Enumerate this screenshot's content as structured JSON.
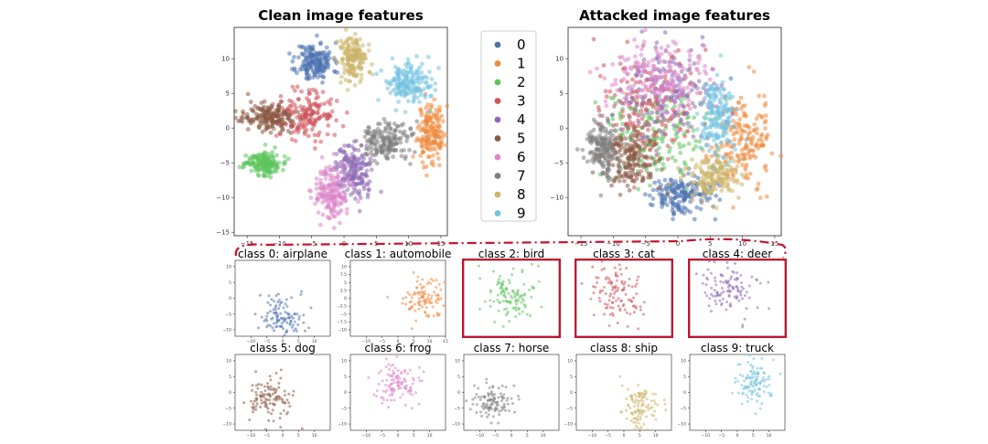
{
  "palette": [
    "#4c72b0",
    "#ee8a3e",
    "#5cc45c",
    "#d0525a",
    "#8e6ab5",
    "#8a5a44",
    "#dd85c8",
    "#7f7f7f",
    "#ccb46a",
    "#73c2e0"
  ],
  "highlight_color": "#c8102e",
  "legend": {
    "entries": [
      "0",
      "1",
      "2",
      "3",
      "4",
      "5",
      "6",
      "7",
      "8",
      "9"
    ]
  },
  "chart_data": [
    {
      "type": "scatter",
      "title": "Clean image features",
      "xlim": [
        -17,
        16
      ],
      "ylim": [
        -15.5,
        14.5
      ],
      "xticks": [
        -15,
        -10,
        -5,
        0,
        5,
        10,
        15
      ],
      "yticks": [
        -15,
        -10,
        -5,
        0,
        5,
        10
      ],
      "ytick_labels": [
        "−15",
        "−10",
        "−5",
        "0",
        "5",
        "10"
      ],
      "clusters": [
        {
          "class": "0",
          "center": [
            -4.5,
            9.5
          ],
          "spread": [
            2.0,
            2.0
          ]
        },
        {
          "class": "1",
          "center": [
            13.5,
            -0.5
          ],
          "spread": [
            1.5,
            3.0
          ]
        },
        {
          "class": "2",
          "center": [
            -12.5,
            -5.0
          ],
          "spread": [
            2.0,
            1.2
          ]
        },
        {
          "class": "3",
          "center": [
            -6.0,
            2.0
          ],
          "spread": [
            3.0,
            2.5
          ]
        },
        {
          "class": "4",
          "center": [
            1.5,
            -6.0
          ],
          "spread": [
            2.0,
            2.8
          ]
        },
        {
          "class": "5",
          "center": [
            -11.5,
            1.5
          ],
          "spread": [
            3.0,
            1.3
          ]
        },
        {
          "class": "6",
          "center": [
            -2.0,
            -9.5
          ],
          "spread": [
            2.0,
            3.0
          ]
        },
        {
          "class": "7",
          "center": [
            6.5,
            -2.0
          ],
          "spread": [
            2.5,
            2.0
          ]
        },
        {
          "class": "8",
          "center": [
            1.5,
            10.0
          ],
          "spread": [
            1.5,
            2.5
          ]
        },
        {
          "class": "9",
          "center": [
            10.0,
            6.5
          ],
          "spread": [
            2.5,
            2.0
          ]
        }
      ]
    },
    {
      "type": "scatter",
      "title": "Attacked image features",
      "xlim": [
        -17,
        16
      ],
      "ylim": [
        -15.5,
        14.5
      ],
      "xticks": [
        -15,
        -10,
        -5,
        0,
        5,
        10,
        15
      ],
      "yticks": [
        -10,
        -5,
        0,
        5,
        10
      ],
      "ytick_labels": [
        "−10",
        "−5",
        "0",
        "5",
        "10"
      ],
      "clusters": [
        {
          "class": "0",
          "center": [
            0.0,
            -9.5
          ],
          "spread": [
            3.5,
            2.0
          ]
        },
        {
          "class": "1",
          "center": [
            10.0,
            -2.0
          ],
          "spread": [
            3.0,
            4.5
          ]
        },
        {
          "class": "2",
          "center": [
            -3.0,
            -1.0
          ],
          "spread": [
            6.0,
            5.0
          ]
        },
        {
          "class": "3",
          "center": [
            -5.0,
            3.0
          ],
          "spread": [
            5.5,
            5.5
          ]
        },
        {
          "class": "4",
          "center": [
            -1.0,
            5.0
          ],
          "spread": [
            5.0,
            4.5
          ]
        },
        {
          "class": "5",
          "center": [
            -7.5,
            -4.5
          ],
          "spread": [
            3.0,
            3.0
          ]
        },
        {
          "class": "6",
          "center": [
            -3.0,
            7.0
          ],
          "spread": [
            5.5,
            3.5
          ]
        },
        {
          "class": "7",
          "center": [
            -11.5,
            -3.0
          ],
          "spread": [
            2.0,
            3.0
          ]
        },
        {
          "class": "8",
          "center": [
            5.5,
            -7.0
          ],
          "spread": [
            3.0,
            2.5
          ]
        },
        {
          "class": "9",
          "center": [
            6.0,
            2.0
          ],
          "spread": [
            2.0,
            4.5
          ]
        }
      ]
    },
    {
      "type": "scatter",
      "title": "class 0: airplane",
      "class": "0",
      "highlighted": false,
      "xlim": [
        -15,
        15
      ],
      "ylim": [
        -12,
        12
      ],
      "xticks": [
        -10,
        -5,
        0,
        5,
        10
      ],
      "yticks": [
        -10,
        -5,
        0,
        5,
        10
      ],
      "center": [
        0,
        -6
      ],
      "spread": [
        5,
        5
      ]
    },
    {
      "type": "scatter",
      "title": "class 1: automobile",
      "class": "1",
      "highlighted": false,
      "xlim": [
        -15,
        15
      ],
      "ylim": [
        -12,
        12
      ],
      "xticks": [
        -10,
        -5,
        0,
        5,
        10,
        15
      ],
      "yticks": [
        -10.0,
        -7.5,
        -5.0,
        -2.5,
        0.0,
        2.5,
        5.0,
        7.5,
        10.0
      ],
      "center": [
        8,
        0
      ],
      "spread": [
        5,
        4
      ]
    },
    {
      "type": "scatter",
      "title": "class 2: bird",
      "class": "2",
      "highlighted": true,
      "xlim": [
        -15,
        15
      ],
      "ylim": [
        -12,
        12
      ],
      "xticks": [],
      "yticks": [],
      "center": [
        0,
        1
      ],
      "spread": [
        6,
        6
      ]
    },
    {
      "type": "scatter",
      "title": "class 3: cat",
      "class": "3",
      "highlighted": true,
      "xlim": [
        -15,
        15
      ],
      "ylim": [
        -12,
        12
      ],
      "xticks": [],
      "yticks": [],
      "center": [
        -2,
        2
      ],
      "spread": [
        6,
        6
      ]
    },
    {
      "type": "scatter",
      "title": "class 4: deer",
      "class": "4",
      "highlighted": true,
      "xlim": [
        -15,
        15
      ],
      "ylim": [
        -12,
        12
      ],
      "xticks": [],
      "yticks": [],
      "center": [
        -2,
        3
      ],
      "spread": [
        6,
        5
      ]
    },
    {
      "type": "scatter",
      "title": "class 5: dog",
      "class": "5",
      "highlighted": false,
      "xlim": [
        -15,
        15
      ],
      "ylim": [
        -12,
        12
      ],
      "xticks": [
        -10,
        -5,
        0,
        5,
        10
      ],
      "yticks": [
        -10,
        -5,
        0,
        5,
        10
      ],
      "center": [
        -4,
        -2
      ],
      "spread": [
        5,
        5
      ]
    },
    {
      "type": "scatter",
      "title": "class 6: frog",
      "class": "6",
      "highlighted": false,
      "xlim": [
        -15,
        15
      ],
      "ylim": [
        -12,
        12
      ],
      "xticks": [
        -10,
        -5,
        0,
        5,
        10
      ],
      "yticks": [
        -10,
        -5,
        0,
        5,
        10
      ],
      "center": [
        0,
        3
      ],
      "spread": [
        5,
        5
      ]
    },
    {
      "type": "scatter",
      "title": "class 7: horse",
      "class": "7",
      "highlighted": false,
      "xlim": [
        -15,
        15
      ],
      "ylim": [
        -12,
        12
      ],
      "xticks": [
        -10,
        -5,
        0,
        5,
        10
      ],
      "yticks": [
        -10,
        -5,
        0,
        5,
        10
      ],
      "center": [
        -6,
        -3
      ],
      "spread": [
        5,
        4
      ]
    },
    {
      "type": "scatter",
      "title": "class 8: ship",
      "class": "8",
      "highlighted": false,
      "xlim": [
        -15,
        15
      ],
      "ylim": [
        -12,
        12
      ],
      "xticks": [
        -10,
        -5,
        0,
        5,
        10
      ],
      "yticks": [
        -10,
        -5,
        0,
        5,
        10
      ],
      "center": [
        5,
        -5
      ],
      "spread": [
        4,
        5
      ]
    },
    {
      "type": "scatter",
      "title": "class 9: truck",
      "class": "9",
      "highlighted": false,
      "xlim": [
        -15,
        15
      ],
      "ylim": [
        -12,
        12
      ],
      "xticks": [
        -10,
        -5,
        0,
        5,
        10
      ],
      "yticks": [
        -10,
        -5,
        0,
        5,
        10
      ],
      "center": [
        5,
        3
      ],
      "spread": [
        4,
        5
      ]
    }
  ]
}
